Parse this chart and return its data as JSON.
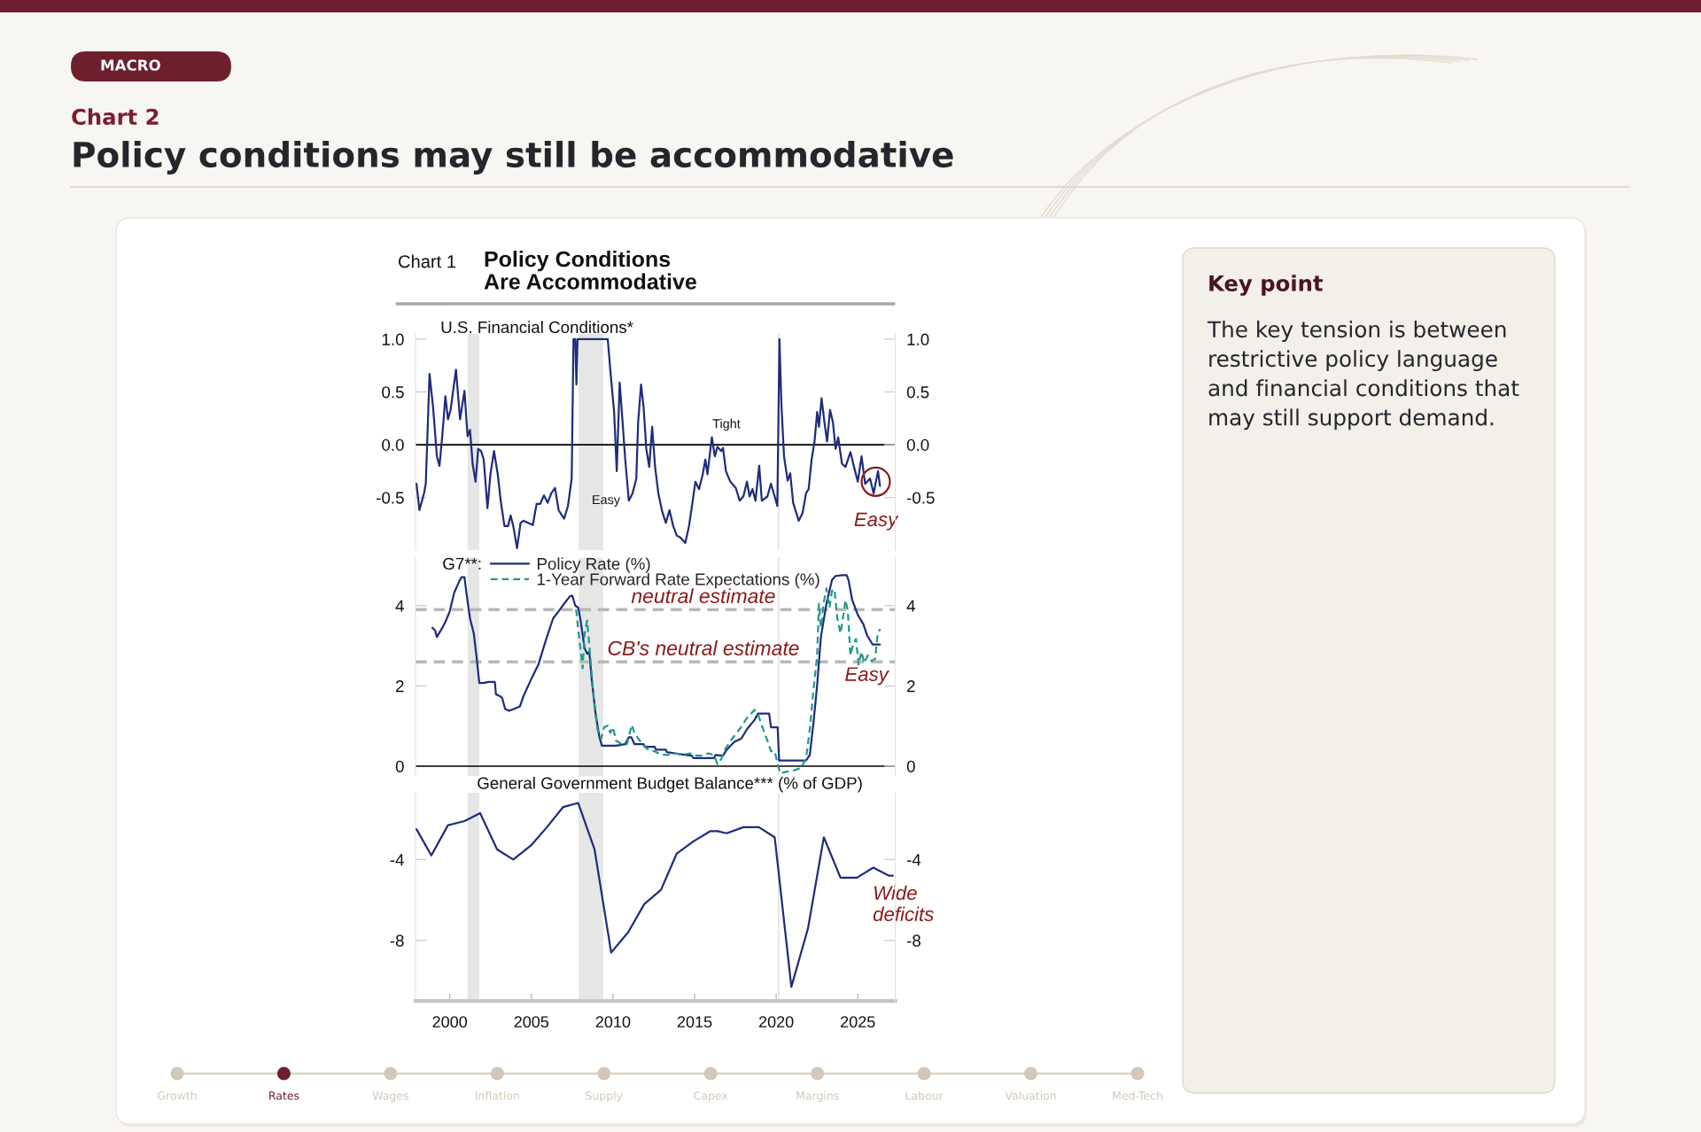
{
  "chart_data": [
    {
      "type": "other",
      "title": "Policy conditions may still be accommodative",
      "subtitle": "Chart 2",
      "annotations": [
        "MACRO"
      ]
    },
    {
      "type": "other",
      "title": "Policy Conditions Are Accommodative",
      "annotations": [
        "Chart 1"
      ]
    },
    {
      "type": "line",
      "title": "U.S. Financial Conditions*",
      "xlim": [
        1997.9,
        2027.3
      ],
      "ylim": [
        -1.0,
        1.05
      ],
      "yticks": [
        -0.5,
        {
          "value": 0,
          "label": "0.0"
        },
        0.5,
        {
          "value": 1,
          "label": "1.0"
        }
      ],
      "y2lim": [
        -1.0,
        1.05
      ],
      "y2ticks": [
        -0.5,
        {
          "value": 0,
          "label": "0.0"
        },
        0.5,
        {
          "value": 1,
          "label": "1.0"
        }
      ],
      "tick_labels": "y",
      "bands": [
        {
          "axis": "x",
          "from": 2001.1,
          "to": 2001.8,
          "color": "#e6e6e6"
        },
        {
          "axis": "x",
          "from": 2007.9,
          "to": 2009.4,
          "color": "#e6e6e6"
        },
        {
          "axis": "x",
          "from": 2020.1,
          "to": 2020.2,
          "color": "#e6e6e6"
        }
      ],
      "ref_lines": [
        {
          "axis": "y",
          "value": 0,
          "color": "#000000"
        }
      ],
      "annotations": [
        "Tight",
        "Easy",
        {
          "text": "Easy",
          "x": 2026.1,
          "y": -0.35
        }
      ],
      "series": [
        {
          "color": "#1f2c7c",
          "x": [
            1997.96,
            1998.14,
            1998.42,
            1998.53,
            1998.76,
            1998.98,
            1999.21,
            1999.37,
            1999.55,
            1999.73,
            1999.89,
            2000.05,
            2000.38,
            2000.63,
            2000.9,
            2001.09,
            2001.24,
            2001.4,
            2001.58,
            2001.74,
            2001.92,
            2002.08,
            2002.31,
            2002.49,
            2002.71,
            2002.94,
            2003.12,
            2003.35,
            2003.57,
            2003.73,
            2003.89,
            2004.12,
            2004.34,
            2004.52,
            2004.8,
            2005.09,
            2005.32,
            2005.54,
            2005.77,
            2006.0,
            2006.22,
            2006.45,
            2006.67,
            2007.01,
            2007.24,
            2007.47,
            2007.58,
            2007.69,
            2007.76,
            2007.83,
            2009.68,
            2009.84,
            2010.07,
            2010.23,
            2010.41,
            2010.59,
            2010.75,
            2010.97,
            2011.2,
            2011.43,
            2011.54,
            2011.72,
            2011.88,
            2012.04,
            2012.22,
            2012.4,
            2012.58,
            2012.78,
            2013.01,
            2013.24,
            2013.46,
            2013.69,
            2013.91,
            2014.14,
            2014.43,
            2014.66,
            2014.82,
            2015.05,
            2015.27,
            2015.5,
            2015.66,
            2015.79,
            2015.95,
            2016.06,
            2016.24,
            2016.4,
            2016.63,
            2016.74,
            2016.92,
            2017.19,
            2017.53,
            2017.76,
            2017.99,
            2018.21,
            2018.37,
            2018.55,
            2018.73,
            2018.96,
            2019.12,
            2019.46,
            2019.68,
            2019.91,
            2020.07,
            2020.2,
            2020.32,
            2020.48,
            2020.7,
            2020.86,
            2021.04,
            2021.38,
            2021.61,
            2021.83,
            2021.99,
            2022.17,
            2022.35,
            2022.51,
            2022.62,
            2022.78,
            2022.96,
            2023.12,
            2023.3,
            2023.48,
            2023.64,
            2023.8,
            2024.03,
            2024.25,
            2024.55,
            2024.77,
            2025.0,
            2025.23,
            2025.45,
            2025.75,
            2025.97,
            2026.24,
            2026.36
          ],
          "values": [
            -0.37,
            -0.62,
            -0.46,
            -0.37,
            0.67,
            0.35,
            -0.11,
            -0.2,
            0.1,
            0.46,
            0.24,
            0.33,
            0.71,
            0.24,
            0.51,
            0.08,
            0.14,
            -0.18,
            -0.35,
            -0.04,
            -0.06,
            -0.14,
            -0.6,
            -0.28,
            -0.06,
            -0.28,
            -0.53,
            -0.77,
            -0.77,
            -0.67,
            -0.77,
            -0.98,
            -0.74,
            -0.72,
            -0.74,
            -0.76,
            -0.56,
            -0.56,
            -0.48,
            -0.55,
            -0.46,
            -0.41,
            -0.62,
            -0.7,
            -0.58,
            -0.32,
            1.0,
            1.0,
            0.57,
            1.0,
            1.0,
            0.7,
            0.31,
            -0.25,
            0.59,
            0.21,
            -0.14,
            -0.53,
            -0.46,
            -0.32,
            0.21,
            0.57,
            0.35,
            -0.04,
            -0.21,
            0.17,
            -0.21,
            -0.46,
            -0.63,
            -0.74,
            -0.62,
            -0.77,
            -0.86,
            -0.88,
            -0.93,
            -0.77,
            -0.6,
            -0.35,
            -0.42,
            -0.28,
            -0.14,
            -0.28,
            -0.07,
            0.07,
            -0.11,
            -0.02,
            -0.06,
            -0.03,
            -0.25,
            -0.35,
            -0.41,
            -0.53,
            -0.49,
            -0.35,
            -0.49,
            -0.42,
            -0.53,
            -0.2,
            -0.53,
            -0.49,
            -0.37,
            -0.49,
            -0.58,
            1.0,
            0.38,
            -0.11,
            -0.34,
            -0.27,
            -0.55,
            -0.72,
            -0.65,
            -0.46,
            -0.42,
            -0.14,
            0.03,
            0.31,
            0.17,
            0.44,
            0.21,
            0.03,
            0.33,
            0.21,
            -0.04,
            0.07,
            -0.18,
            -0.21,
            -0.07,
            -0.21,
            -0.35,
            -0.11,
            -0.37,
            -0.32,
            -0.46,
            -0.25,
            -0.39
          ]
        }
      ]
    },
    {
      "type": "line",
      "legend_title": "G7**:",
      "legend": "top",
      "xlim": [
        1997.9,
        2027.3
      ],
      "ylim": [
        -0.25,
        5.2
      ],
      "yticks": [
        0,
        2,
        4
      ],
      "y2lim": [
        -0.25,
        5.2
      ],
      "y2ticks": [
        0,
        2,
        4
      ],
      "tick_labels": "y",
      "bands": [
        {
          "axis": "x",
          "from": 2001.1,
          "to": 2001.8,
          "color": "#e6e6e6"
        },
        {
          "axis": "x",
          "from": 2007.9,
          "to": 2009.4,
          "color": "#e6e6e6"
        },
        {
          "axis": "x",
          "from": 2020.1,
          "to": 2020.2,
          "color": "#e6e6e6"
        }
      ],
      "ref_lines": [
        {
          "axis": "y",
          "value": 0,
          "color": "#000000"
        },
        {
          "axis": "y",
          "value": 3.9,
          "label": "neutral estimate",
          "color": "#b8b8b8",
          "line_style": "dashed"
        },
        {
          "axis": "y",
          "value": 2.6,
          "label": "CB's neutral estimate",
          "color": "#b8b8b8",
          "line_style": "dashed"
        }
      ],
      "annotations": [
        "Easy"
      ],
      "series": [
        {
          "name": "Policy Rate (%)",
          "color": "#1f2c7c",
          "x": [
            1998.94,
            1999.1,
            1999.21,
            1999.37,
            1999.55,
            1999.77,
            2000.0,
            2000.27,
            2000.57,
            2000.72,
            2000.9,
            2001.02,
            2001.24,
            2001.47,
            2001.63,
            2001.81,
            2002.04,
            2002.38,
            2002.76,
            2002.83,
            2003.05,
            2003.21,
            2003.39,
            2003.62,
            2003.96,
            2004.3,
            2004.52,
            2004.98,
            2005.43,
            2005.88,
            2006.33,
            2006.67,
            2007.01,
            2007.35,
            2007.51,
            2007.69,
            2007.87,
            2008.03,
            2008.26,
            2008.42,
            2008.55,
            2008.71,
            2008.94,
            2009.16,
            2009.32,
            2009.62,
            2010.18,
            2010.75,
            2010.97,
            2011.13,
            2011.31,
            2011.88,
            2011.95,
            2012.56,
            2012.63,
            2013.24,
            2013.3,
            2013.8,
            2014.48,
            2014.82,
            2014.93,
            2016.18,
            2016.29,
            2016.74,
            2016.97,
            2017.42,
            2017.87,
            2018.21,
            2018.67,
            2018.89,
            2019.57,
            2019.68,
            2020.09,
            2020.18,
            2021.04,
            2021.83,
            2022.06,
            2022.29,
            2022.51,
            2022.74,
            2023.08,
            2023.42,
            2023.64,
            2024.05,
            2024.32,
            2024.43,
            2024.66,
            2025.0,
            2025.34,
            2025.57,
            2025.91,
            2026.36
          ],
          "values": [
            3.45,
            3.38,
            3.22,
            3.33,
            3.45,
            3.63,
            3.86,
            4.32,
            4.6,
            4.71,
            4.71,
            4.32,
            3.68,
            3.31,
            2.76,
            2.07,
            2.07,
            2.1,
            2.1,
            1.79,
            1.75,
            1.7,
            1.43,
            1.38,
            1.43,
            1.49,
            1.75,
            2.16,
            2.53,
            3.13,
            3.68,
            3.86,
            4.05,
            4.23,
            4.25,
            4.0,
            3.95,
            3.59,
            2.94,
            2.8,
            2.85,
            2.11,
            1.29,
            0.74,
            0.51,
            0.51,
            0.51,
            0.55,
            0.72,
            0.72,
            0.55,
            0.55,
            0.48,
            0.48,
            0.41,
            0.41,
            0.35,
            0.32,
            0.28,
            0.26,
            0.2,
            0.2,
            0.28,
            0.26,
            0.41,
            0.6,
            0.69,
            0.92,
            1.15,
            1.31,
            1.31,
            0.97,
            0.97,
            0.14,
            0.14,
            0.14,
            0.28,
            1.1,
            2.02,
            3.22,
            4.05,
            4.64,
            4.74,
            4.76,
            4.76,
            4.64,
            4.14,
            3.77,
            3.54,
            3.26,
            3.03,
            3.03
          ]
        },
        {
          "name": "1-Year Forward Rate Expectations (%)",
          "color": "#1f9a8a",
          "line_style": "dashed",
          "x": [
            2007.74,
            2007.92,
            2008.14,
            2008.26,
            2008.42,
            2008.6,
            2008.82,
            2009.05,
            2009.28,
            2009.46,
            2009.68,
            2009.84,
            2010.0,
            2010.18,
            2010.52,
            2010.86,
            2011.15,
            2011.31,
            2011.54,
            2011.88,
            2012.22,
            2012.56,
            2012.9,
            2013.35,
            2013.8,
            2014.25,
            2014.71,
            2014.93,
            2015.38,
            2015.84,
            2016.18,
            2016.4,
            2016.63,
            2016.86,
            2017.31,
            2017.76,
            2018.21,
            2018.67,
            2018.89,
            2019.12,
            2019.46,
            2019.68,
            2019.91,
            2020.09,
            2020.25,
            2020.59,
            2021.04,
            2021.49,
            2021.83,
            2022.06,
            2022.29,
            2022.51,
            2022.62,
            2022.74,
            2022.9,
            2023.08,
            2023.26,
            2023.42,
            2023.57,
            2023.75,
            2023.94,
            2024.1,
            2024.25,
            2024.39,
            2024.55,
            2024.71,
            2024.89,
            2025.05,
            2025.23,
            2025.39,
            2025.61,
            2025.84,
            2026.06,
            2026.2,
            2026.36
          ],
          "values": [
            3.91,
            3.22,
            2.44,
            3.31,
            3.63,
            2.76,
            1.66,
            0.92,
            0.69,
            0.97,
            1.01,
            0.83,
            0.97,
            0.64,
            0.55,
            0.55,
            1.03,
            0.83,
            0.69,
            0.51,
            0.39,
            0.37,
            0.29,
            0.28,
            0.32,
            0.28,
            0.32,
            0.26,
            0.26,
            0.32,
            0.28,
            0.05,
            0.18,
            0.41,
            0.69,
            0.92,
            1.2,
            1.4,
            1.29,
            1.01,
            0.64,
            0.37,
            0.37,
            0.05,
            -0.18,
            -0.14,
            -0.11,
            -0.05,
            0.18,
            0.92,
            1.93,
            2.76,
            4.05,
            3.45,
            4.05,
            4.43,
            3.95,
            4.37,
            4.41,
            3.68,
            3.31,
            3.72,
            4.14,
            3.86,
            2.76,
            3.03,
            3.17,
            2.53,
            2.85,
            2.57,
            2.76,
            2.62,
            2.67,
            3.22,
            3.42
          ]
        }
      ]
    },
    {
      "type": "line",
      "title": "General Government Budget Balance*** (% of GDP)",
      "xlim": [
        1997.9,
        2027.3
      ],
      "ylim": [
        -11,
        -0.7
      ],
      "xticks": [
        2000,
        2005,
        2010,
        2015,
        2020,
        2025
      ],
      "yticks": [
        -8,
        -4
      ],
      "y2lim": [
        -11,
        -0.7
      ],
      "y2ticks": [
        -8,
        -4
      ],
      "bands": [
        {
          "axis": "x",
          "from": 2001.1,
          "to": 2001.8,
          "color": "#e6e6e6"
        },
        {
          "axis": "x",
          "from": 2007.9,
          "to": 2009.4,
          "color": "#e6e6e6"
        },
        {
          "axis": "x",
          "from": 2020.1,
          "to": 2020.2,
          "color": "#e6e6e6"
        }
      ],
      "annotations": [
        "Wide deficits"
      ],
      "series": [
        {
          "color": "#1f2c7c",
          "x": [
            1997.96,
            1998.87,
            1999.89,
            2000.9,
            2001.86,
            2002.9,
            2003.89,
            2004.98,
            2005.95,
            2006.95,
            2007.87,
            2008.87,
            2009.89,
            2010.93,
            2011.92,
            2012.94,
            2013.91,
            2014.93,
            2015.95,
            2016.4,
            2016.97,
            2017.99,
            2018.94,
            2019.91,
            2020.93,
            2021.95,
            2022.92,
            2023.94,
            2024.95,
            2025.95,
            2026.92,
            2027.15
          ],
          "values": [
            -2.5,
            -3.8,
            -2.3,
            -2.1,
            -1.7,
            -3.5,
            -4.0,
            -3.3,
            -2.4,
            -1.4,
            -1.2,
            -3.5,
            -8.6,
            -7.6,
            -6.2,
            -5.5,
            -3.7,
            -3.1,
            -2.6,
            -2.6,
            -2.7,
            -2.4,
            -2.4,
            -2.9,
            -10.3,
            -7.4,
            -2.9,
            -4.9,
            -4.9,
            -4.4,
            -4.8,
            -4.8
          ]
        }
      ]
    },
    {
      "type": "other",
      "title": "Key point",
      "annotations": [
        "The key tension is between restrictive policy language and financial conditions that may still support demand."
      ]
    },
    {
      "type": "other",
      "categories": [
        "Growth",
        "Rates",
        "Wages",
        "Inflation",
        "Supply",
        "Capex",
        "Margins",
        "Labour",
        "Valuation",
        "Med-Tech"
      ],
      "colors": [
        "#d3c7ba",
        "#6e1f2e",
        "#d3c7ba",
        "#d3c7ba",
        "#d3c7ba",
        "#d3c7ba",
        "#d3c7ba",
        "#d3c7ba",
        "#d3c7ba",
        "#d3c7ba"
      ]
    }
  ]
}
